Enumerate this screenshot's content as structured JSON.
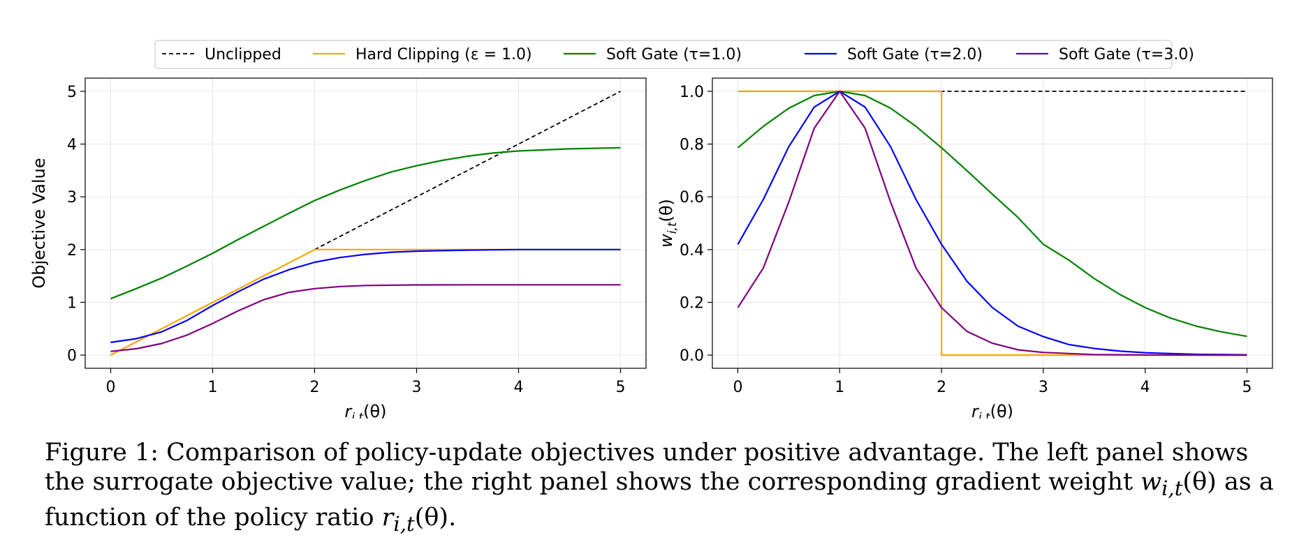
{
  "legend": [
    {
      "label": "Unclipped",
      "color": "#000000",
      "dashed": true
    },
    {
      "label": "Hard Clipping (ε = 1.0)",
      "color": "#FFA500",
      "dashed": false
    },
    {
      "label": "Soft Gate (τ=1.0)",
      "color": "#008000",
      "dashed": false
    },
    {
      "label": "Soft Gate (τ=2.0)",
      "color": "#0000FF",
      "dashed": false
    },
    {
      "label": "Soft Gate (τ=3.0)",
      "color": "#800080",
      "dashed": false
    }
  ],
  "chart_data": [
    {
      "type": "line",
      "panel": "left",
      "title": "",
      "xlabel": "r_{i,t}(θ)",
      "ylabel": "Objective Value",
      "xlim": [
        -0.25,
        5.25
      ],
      "ylim": [
        -0.25,
        5.25
      ],
      "xticks": [
        0,
        1,
        2,
        3,
        4,
        5
      ],
      "yticks": [
        0,
        1,
        2,
        3,
        4,
        5
      ],
      "grid": true,
      "series": [
        {
          "name": "Unclipped",
          "color": "#000000",
          "dashed": true,
          "x": [
            2,
            5
          ],
          "y": [
            2,
            5
          ]
        },
        {
          "name": "Hard Clipping (ε = 1.0)",
          "color": "#FFA500",
          "dashed": false,
          "x": [
            0,
            2,
            5
          ],
          "y": [
            0,
            2,
            2
          ]
        },
        {
          "name": "Soft Gate (τ=1.0)",
          "color": "#008000",
          "dashed": false,
          "x": [
            0,
            0.25,
            0.5,
            0.75,
            1,
            1.25,
            1.5,
            1.75,
            2,
            2.25,
            2.5,
            2.75,
            3,
            3.25,
            3.5,
            3.75,
            4,
            4.25,
            4.5,
            4.75,
            5
          ],
          "y": [
            1.07,
            1.26,
            1.46,
            1.69,
            1.93,
            2.19,
            2.44,
            2.69,
            2.93,
            3.13,
            3.31,
            3.47,
            3.59,
            3.69,
            3.77,
            3.83,
            3.87,
            3.89,
            3.91,
            3.92,
            3.93
          ]
        },
        {
          "name": "Soft Gate (τ=2.0)",
          "color": "#0000FF",
          "dashed": false,
          "x": [
            0,
            0.25,
            0.5,
            0.75,
            1,
            1.25,
            1.5,
            1.75,
            2,
            2.25,
            2.5,
            2.75,
            3,
            3.25,
            3.5,
            3.75,
            4,
            4.5,
            5
          ],
          "y": [
            0.24,
            0.31,
            0.44,
            0.66,
            0.94,
            1.2,
            1.44,
            1.62,
            1.76,
            1.85,
            1.91,
            1.95,
            1.97,
            1.98,
            1.99,
            1.995,
            2.0,
            2.0,
            2.0
          ]
        },
        {
          "name": "Soft Gate (τ=3.0)",
          "color": "#800080",
          "dashed": false,
          "x": [
            0,
            0.25,
            0.5,
            0.75,
            1,
            1.25,
            1.5,
            1.75,
            2,
            2.25,
            2.5,
            3,
            3.5,
            4,
            4.5,
            5
          ],
          "y": [
            0.07,
            0.12,
            0.22,
            0.38,
            0.6,
            0.84,
            1.05,
            1.19,
            1.26,
            1.3,
            1.32,
            1.33,
            1.333,
            1.333,
            1.333,
            1.333
          ]
        }
      ]
    },
    {
      "type": "line",
      "panel": "right",
      "title": "",
      "xlabel": "r_{i,t}(θ)",
      "ylabel": "w_{i,t}(θ)",
      "xlim": [
        -0.25,
        5.25
      ],
      "ylim": [
        -0.05,
        1.05
      ],
      "xticks": [
        0,
        1,
        2,
        3,
        4,
        5
      ],
      "yticks": [
        0.0,
        0.2,
        0.4,
        0.6,
        0.8,
        1.0
      ],
      "grid": true,
      "series": [
        {
          "name": "Unclipped",
          "color": "#000000",
          "dashed": true,
          "x": [
            0,
            5
          ],
          "y": [
            1,
            1
          ]
        },
        {
          "name": "Hard Clipping (ε = 1.0)",
          "color": "#FFA500",
          "dashed": false,
          "x": [
            0,
            2,
            2,
            5
          ],
          "y": [
            1,
            1,
            0,
            0
          ]
        },
        {
          "name": "Soft Gate (τ=1.0)",
          "color": "#008000",
          "dashed": false,
          "x": [
            0,
            0.25,
            0.5,
            0.75,
            1,
            1.25,
            1.5,
            1.75,
            2,
            2.25,
            2.5,
            2.75,
            3,
            3.25,
            3.5,
            3.75,
            4,
            4.25,
            4.5,
            4.75,
            5
          ],
          "y": [
            0.786,
            0.867,
            0.936,
            0.984,
            1.0,
            0.984,
            0.936,
            0.867,
            0.786,
            0.699,
            0.61,
            0.522,
            0.42,
            0.36,
            0.29,
            0.23,
            0.18,
            0.14,
            0.11,
            0.088,
            0.071
          ]
        },
        {
          "name": "Soft Gate (τ=2.0)",
          "color": "#0000FF",
          "dashed": false,
          "x": [
            0,
            0.25,
            0.5,
            0.75,
            1,
            1.25,
            1.5,
            1.75,
            2,
            2.25,
            2.5,
            2.75,
            3,
            3.25,
            3.5,
            3.75,
            4,
            4.5,
            5
          ],
          "y": [
            0.42,
            0.59,
            0.79,
            0.94,
            1.0,
            0.94,
            0.79,
            0.59,
            0.42,
            0.28,
            0.18,
            0.11,
            0.07,
            0.04,
            0.025,
            0.015,
            0.009,
            0.003,
            0.001
          ]
        },
        {
          "name": "Soft Gate (τ=3.0)",
          "color": "#800080",
          "dashed": false,
          "x": [
            0,
            0.25,
            0.5,
            0.75,
            1,
            1.25,
            1.5,
            1.75,
            2,
            2.25,
            2.5,
            2.75,
            3,
            3.5,
            4,
            5
          ],
          "y": [
            0.18,
            0.33,
            0.58,
            0.86,
            1.0,
            0.86,
            0.58,
            0.33,
            0.18,
            0.09,
            0.045,
            0.02,
            0.01,
            0.002,
            0.0005,
            0.0
          ]
        }
      ]
    }
  ],
  "caption": {
    "part1": "Figure 1: Comparison of policy-update objectives under positive advantage. The left panel shows the surrogate objective value; the right panel shows the corresponding gradient weight ",
    "w": "w",
    "w_sub": "i,t",
    "theta": "(θ)",
    "part2": " as a function of the policy ratio ",
    "r": "r",
    "r_sub": "i,t",
    "end": "."
  }
}
